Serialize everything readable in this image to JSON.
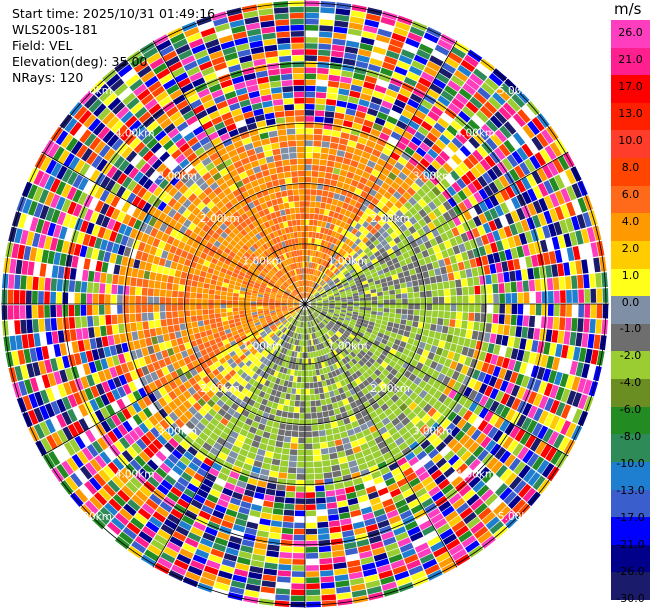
{
  "header": {
    "start_time": "Start time: 2025/10/31 01:49:16",
    "site": "WLS200s-181",
    "field": "Field: VEL",
    "elevation": "Elevation(deg): 35.00",
    "nrays": "NRays: 120"
  },
  "colorbar": {
    "unit": "m/s",
    "ticks": [
      "26.0",
      "21.0",
      "17.0",
      "13.0",
      "10.0",
      "8.0",
      "6.0",
      "4.0",
      "2.0",
      "1.0",
      "0.0",
      "-1.0",
      "-2.0",
      "-4.0",
      "-6.0",
      "-8.0",
      "-10.0",
      "-13.0",
      "-17.0",
      "-21.0",
      "-26.0",
      "-30.0"
    ],
    "colors": [
      "#ff3dbf",
      "#ff1f8f",
      "#ff0000",
      "#ff2000",
      "#ff3d2a",
      "#ff4500",
      "#ff6a1a",
      "#ff9900",
      "#ffcc00",
      "#ffff1a",
      "#7f8fa6",
      "#6e6e6e",
      "#9acd32",
      "#6b8e23",
      "#228b22",
      "#2e8b57",
      "#1e7fd0",
      "#3a5fcd",
      "#0000ff",
      "#00008b",
      "#1b1b6b"
    ]
  },
  "chart_data": {
    "type": "polar_ppi",
    "field": "VEL",
    "units": "m/s",
    "elevation_deg": 35.0,
    "n_rays": 120,
    "range_rings_km": [
      1.0,
      2.0,
      3.0,
      4.0,
      5.0
    ],
    "range_ring_labels": [
      "1.00km",
      "2.00km",
      "3.00km",
      "4.00km",
      "5.00km"
    ],
    "max_range_km": 5.05,
    "spokes_deg": [
      0,
      30,
      60,
      90,
      120,
      150,
      180,
      210,
      240,
      270,
      300,
      330
    ],
    "pattern": {
      "positive_core_ms": 4.0,
      "negative_core_ms": -2.0,
      "core_radius_km": 2.2,
      "transition_radius_km": 2.6,
      "noise_radius_km": 3.0
    }
  }
}
